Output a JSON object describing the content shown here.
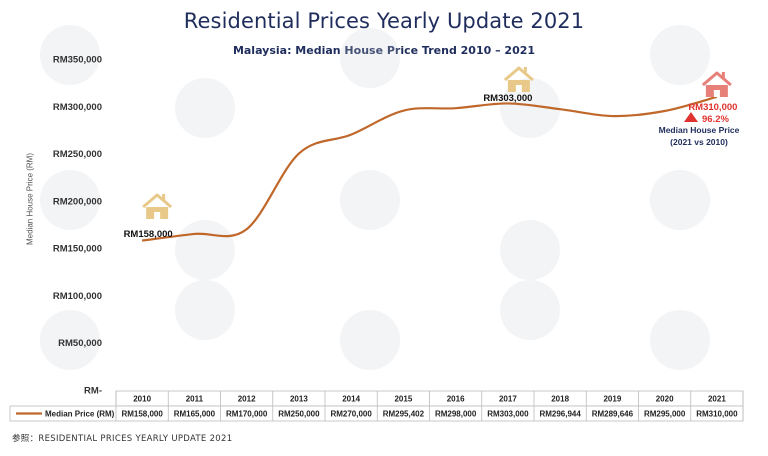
{
  "title": "Residential Prices Yearly Update 2021",
  "subtitle": "Malaysia: Median House Price Trend 2010 – 2021",
  "source": "参照：RESIDENTIAL PRICES YEARLY UPDATE 2021",
  "colors": {
    "line": "#c0672a",
    "accent_red": "#e0332f",
    "house_tan": "#e8c98a",
    "house_red": "#e8807a",
    "title": "#1f2d5c"
  },
  "chart_data": {
    "type": "line",
    "ylabel": "Median House Price (RM)",
    "ylim": [
      0,
      350000
    ],
    "yticks": [
      "RM-",
      "RM50,000",
      "RM100,000",
      "RM150,000",
      "RM200,000",
      "RM250,000",
      "RM300,000",
      "RM350,000"
    ],
    "categories": [
      "2010",
      "2011",
      "2012",
      "2013",
      "2014",
      "2015",
      "2016",
      "2017",
      "2018",
      "2019",
      "2020",
      "2021"
    ],
    "series": [
      {
        "name": "Median Price (RM)",
        "values": [
          158000,
          165000,
          170000,
          250000,
          270000,
          295402,
          298000,
          303000,
          296944,
          289646,
          295000,
          310000
        ],
        "labels": [
          "RM158,000",
          "RM165,000",
          "RM170,000",
          "RM250,000",
          "RM270,000",
          "RM295,402",
          "RM298,000",
          "RM303,000",
          "RM296,944",
          "RM289,646",
          "RM295,000",
          "RM310,000"
        ]
      }
    ],
    "grid": false,
    "legend": "table-left"
  },
  "annotations": {
    "start_label": "RM158,000",
    "peak_label": "RM303,000",
    "end_label": "RM310,000",
    "change_pct": "96.2%",
    "change_caption_1": "Median House Price",
    "change_caption_2": "(2021 vs 2010)"
  }
}
